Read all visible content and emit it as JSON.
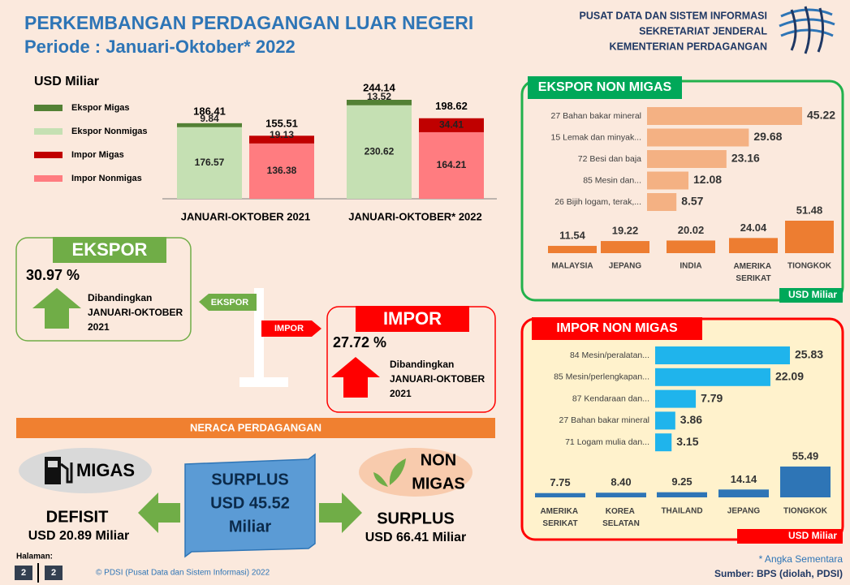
{
  "header": {
    "title": "PERKEMBANGAN PERDAGANGAN LUAR NEGERI",
    "subtitle": "Periode : Januari-Oktober* 2022",
    "org": [
      "PUSAT DATA DAN SISTEM INFORMASI",
      "SEKRETARIAT JENDERAL",
      "KEMENTERIAN PERDAGANGAN"
    ]
  },
  "chart_data": [
    {
      "type": "bar",
      "stacked": true,
      "unit": "USD Miliar",
      "categories": [
        "JANUARI-OKTOBER 2021",
        "JANUARI-OKTOBER* 2022"
      ],
      "stacks": [
        {
          "totals": [
            186.41,
            244.14
          ],
          "series": [
            {
              "name": "Ekspor Migas",
              "color": "#538135",
              "values": [
                9.84,
                13.52
              ]
            },
            {
              "name": "Ekspor Nonmigas",
              "color": "#c5e0b3",
              "values": [
                176.57,
                230.62
              ]
            }
          ]
        },
        {
          "totals": [
            155.51,
            198.62
          ],
          "series": [
            {
              "name": "Impor Migas",
              "color": "#c00000",
              "values": [
                19.13,
                34.41
              ]
            },
            {
              "name": "Impor Nonmigas",
              "color": "#ff7c80",
              "values": [
                136.38,
                164.21
              ]
            }
          ]
        }
      ]
    },
    {
      "type": "bar",
      "orientation": "horizontal",
      "categories": [
        "27 Bahan bakar mineral",
        "15 Lemak dan minyak...",
        "72 Besi dan baja",
        "85 Mesin dan...",
        "26 Bijih logam, terak,..."
      ],
      "values": [
        45.22,
        29.68,
        23.16,
        12.08,
        8.57
      ],
      "color": "#f4b183"
    },
    {
      "type": "bar",
      "orientation": "vertical",
      "categories": [
        "MALAYSIA",
        "JEPANG",
        "INDIA",
        "AMERIKA SERIKAT",
        "TIONGKOK"
      ],
      "values": [
        11.54,
        19.22,
        20.02,
        24.04,
        51.48
      ],
      "color": "#ed7d31"
    },
    {
      "type": "bar",
      "orientation": "horizontal",
      "categories": [
        "84 Mesin/peralatan...",
        "85 Mesin/perlengkapan...",
        "87 Kendaraan dan...",
        "27 Bahan bakar mineral",
        "71 Logam mulia dan..."
      ],
      "values": [
        25.83,
        22.09,
        7.79,
        3.86,
        3.15
      ],
      "color": "#1fb4ec"
    },
    {
      "type": "bar",
      "orientation": "vertical",
      "categories": [
        "AMERIKA SERIKAT",
        "KOREA SELATAN",
        "THAILAND",
        "JEPANG",
        "TIONGKOK"
      ],
      "values": [
        7.75,
        8.4,
        9.25,
        14.14,
        55.49
      ],
      "value_labels": [
        "7.75",
        "8.40",
        "9.25",
        "14.14",
        "55.49"
      ],
      "color": "#2e75b6"
    }
  ],
  "panels": [
    {
      "title": "EKSPOR NON MIGAS",
      "unit": "USD Miliar"
    },
    {
      "title": "IMPOR NON MIGAS",
      "unit": "USD Miliar"
    }
  ],
  "ekspor": {
    "label": "EKSPOR",
    "change": "30.97 %",
    "compare": [
      "Dibandingkan",
      "JANUARI-OKTOBER",
      "2021"
    ],
    "sign": "EKSPOR"
  },
  "impor": {
    "label": "IMPOR",
    "change": "27.72 %",
    "compare": [
      "Dibandingkan",
      "JANUARI-OKTOBER",
      "2021"
    ],
    "sign": "IMPOR"
  },
  "neraca": {
    "title": "NERACA PERDAGANGAN",
    "migas": {
      "label": "MIGAS",
      "status": "DEFISIT",
      "amount": "USD 20.89 Miliar"
    },
    "total": {
      "status": "SURPLUS",
      "amount": "USD 45.52",
      "unit": "Miliar"
    },
    "nonmigas": {
      "label": [
        "NON",
        "MIGAS"
      ],
      "status": "SURPLUS",
      "amount": "USD 66.41 Miliar"
    }
  },
  "footer": {
    "page_label": "Halaman:",
    "pages": [
      "2",
      "2"
    ],
    "copyright": "© PDSI  (Pusat Data dan Sistem Informasi) 2022",
    "note": "* Angka Sementara",
    "source": "Sumber: BPS (diolah, PDSI)"
  }
}
